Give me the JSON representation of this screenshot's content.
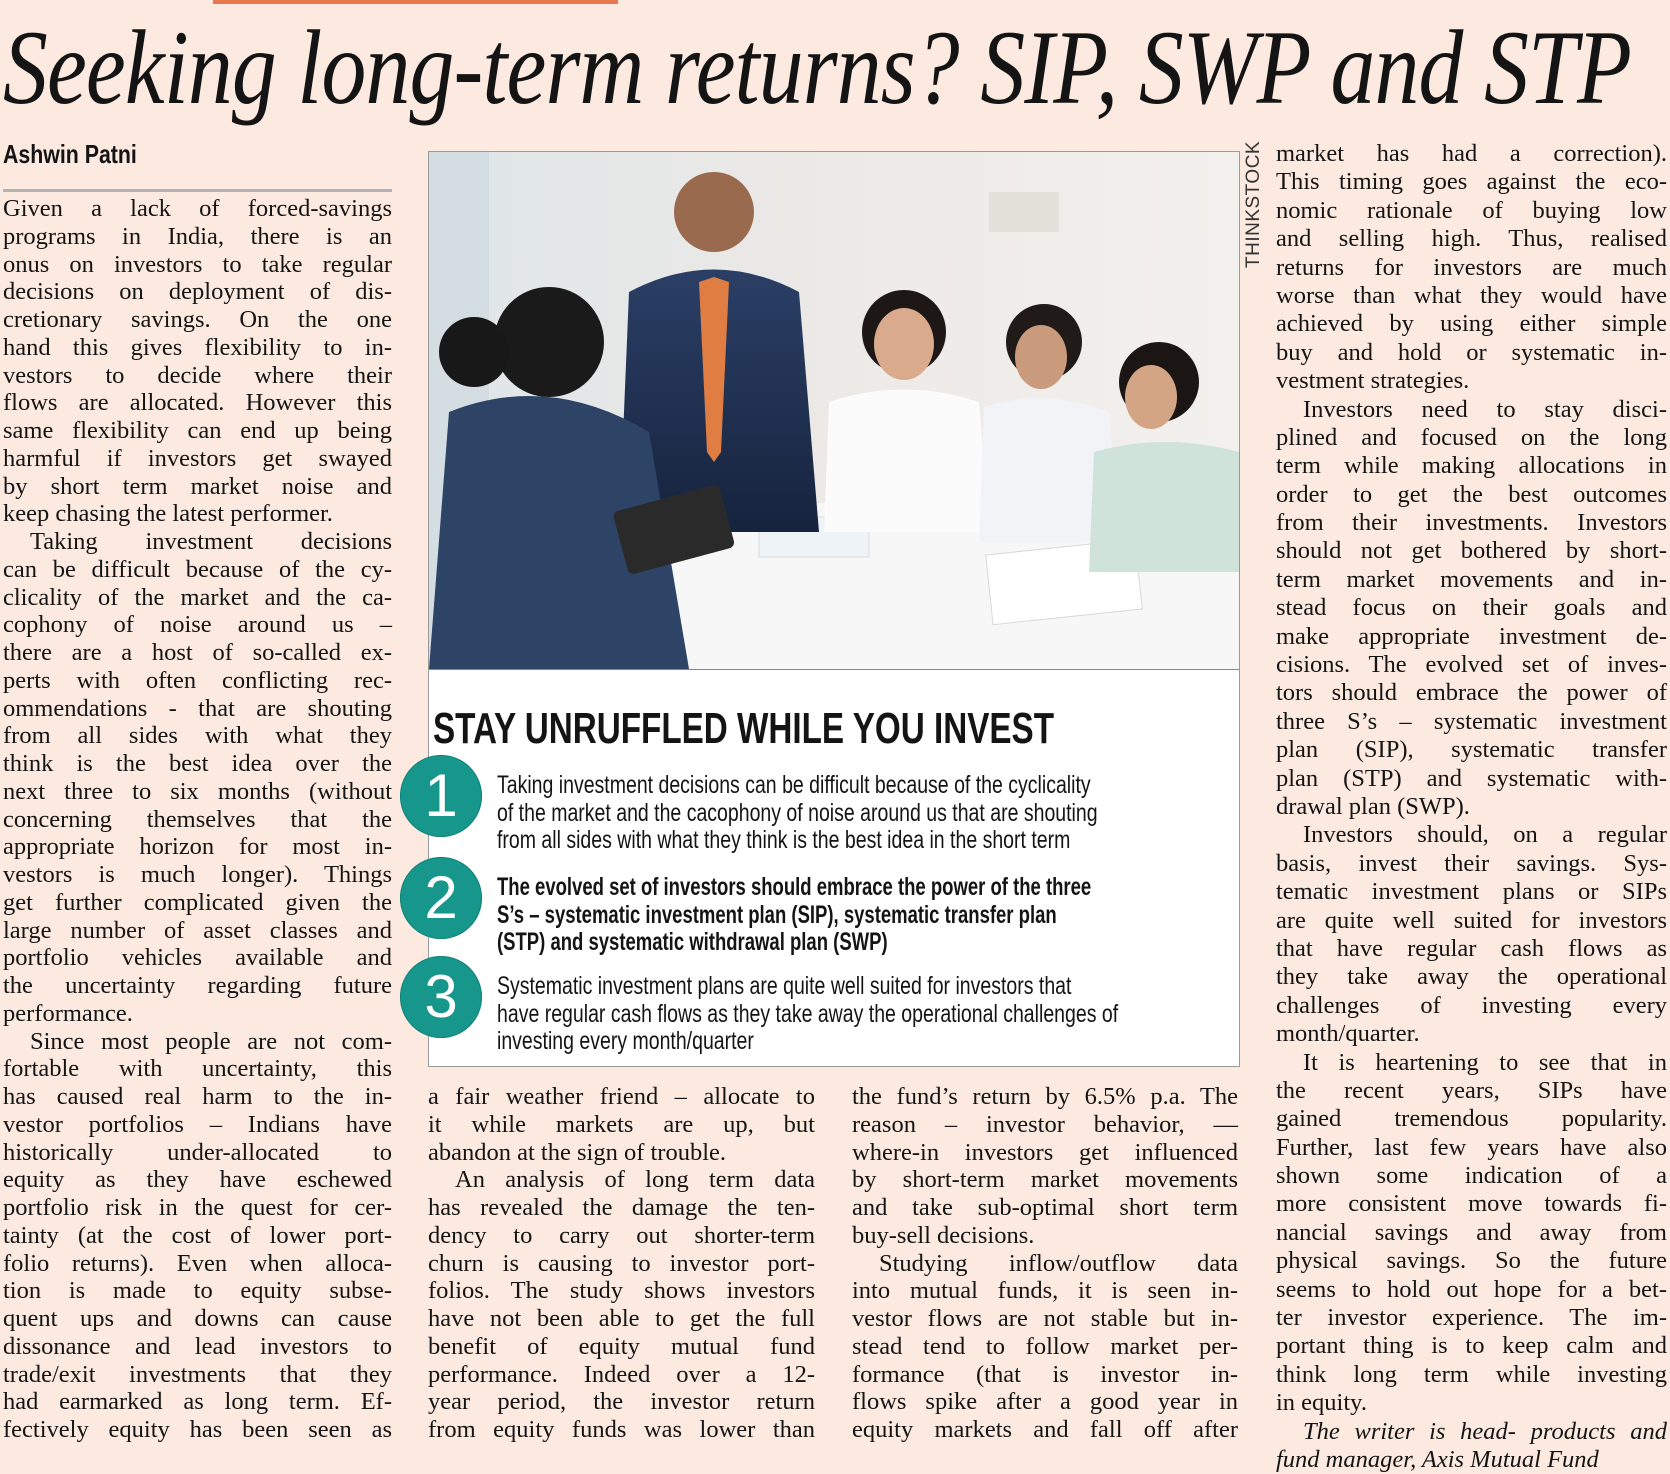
{
  "article": {
    "title": "Seeking long-term returns? SIP, SWP and STP",
    "byline": "Ashwin Patni",
    "photo_credit": "THINKSTOCK",
    "accent_color": "#e8794f",
    "background_color": "#fce9df"
  },
  "sidebar_box": {
    "heading": "STAY UNRUFFLED WHILE YOU INVEST",
    "circle_color": "#17978c",
    "items": [
      {
        "number": "1",
        "lines": [
          "Taking investment decisions can be difficult because of the cyclicality",
          "of the market and the cacophony of noise around us that are shouting",
          "from all sides with what they think is the best idea in the short term"
        ]
      },
      {
        "number": "2",
        "lines": [
          "The evolved set of investors should embrace the power of the three",
          "S’s – systematic investment plan (SIP), systematic transfer plan",
          "(STP) and systematic withdrawal plan (SWP)"
        ]
      },
      {
        "number": "3",
        "lines": [
          "Systematic investment plans are quite well suited for investors that",
          "have regular cash flows as they take away the operational challenges of",
          "investing every month/quarter"
        ]
      }
    ]
  },
  "columns": [
    {
      "paragraphs": [
        [
          "Given a lack of forced-savings",
          "programs in India, there is an",
          "onus on investors to take regular",
          "decisions on deployment of dis-",
          "cretionary savings. On the one",
          "hand this gives flexibility to in-",
          "vestors to decide where their",
          "flows are allocated. However this",
          "same flexibility can end up being",
          "harmful if investors get swayed",
          "by short term market noise and",
          "keep chasing the latest performer."
        ],
        [
          "Taking investment decisions",
          "can be difficult because of the cy-",
          "clicality of the market and the ca-",
          "cophony of noise around us –",
          "there are a host of so-called ex-",
          "perts with often conflicting rec-",
          "ommendations - that are shouting",
          "from all sides with what they",
          "think is the best idea over the",
          "next three to six months (without",
          "concerning themselves that the",
          "appropriate horizon for most in-",
          "vestors is much longer). Things",
          "get further complicated given the",
          "large number of asset classes and",
          "portfolio vehicles available and",
          "the uncertainty regarding future",
          "performance."
        ],
        [
          "Since most people are not com-",
          "fortable with uncertainty, this",
          "has caused real harm to the in-",
          "vestor portfolios – Indians have",
          "historically under-allocated to",
          "equity as they have eschewed",
          "portfolio risk in the quest for cer-",
          "tainty (at the cost of lower port-",
          "folio returns). Even when alloca-",
          "tion is made to equity subse-",
          "quent ups and downs can cause",
          "dissonance and lead investors to",
          "trade/exit investments that they",
          "had earmarked as long term. Ef-",
          "fectively equity has been seen as"
        ]
      ]
    },
    {
      "paragraphs": [
        [
          "a fair weather friend – allocate to",
          "it while markets are up, but",
          "abandon at the sign of trouble."
        ],
        [
          "An analysis of long term data",
          "has revealed the damage the ten-",
          "dency to carry out shorter-term",
          "churn is causing to investor port-",
          "folios. The study shows investors",
          "have not been able to get the full",
          "benefit of equity mutual fund",
          "performance. Indeed over a 12-",
          "year period, the investor return",
          "from equity funds was lower than"
        ]
      ]
    },
    {
      "paragraphs": [
        [
          "the fund’s return by 6.5% p.a. The",
          "reason – investor behavior, —",
          "where-in investors get influenced",
          "by short-term market movements",
          "and take sub-optimal short term",
          "buy-sell decisions."
        ],
        [
          "Studying inflow/outflow data",
          "into mutual funds, it is seen in-",
          "vestor flows are not stable but in-",
          "stead tend to follow market per-",
          "formance (that is investor in-",
          "flows spike after a good year in",
          "equity markets and fall off after"
        ]
      ]
    },
    {
      "paragraphs": [
        [
          "market has had a correction).",
          "This timing goes against the eco-",
          "nomic rationale of buying low",
          "and selling high. Thus, realised",
          "returns for investors are much",
          "worse than what they would have",
          "achieved by using either simple",
          "buy and hold or systematic in-",
          "vestment strategies."
        ],
        [
          "Investors need to stay disci-",
          "plined and focused on the long",
          "term while making allocations in",
          "order to get the best outcomes",
          "from their investments. Investors",
          "should not get bothered by short-",
          "term market movements and in-",
          "stead focus on their goals and",
          "make appropriate investment de-",
          "cisions. The evolved set of inves-",
          "tors should embrace the power of",
          "three S’s – systematic investment",
          "plan (SIP), systematic transfer",
          "plan (STP) and systematic with-",
          "drawal plan (SWP)."
        ],
        [
          "Investors should, on a regular",
          "basis, invest their savings. Sys-",
          "tematic investment plans or SIPs",
          "are quite well suited for investors",
          "that have regular cash flows as",
          "they take away the operational",
          "challenges of investing every",
          "month/quarter."
        ],
        [
          "It is heartening to see that in",
          "the recent years, SIPs have",
          "gained tremendous popularity.",
          "Further, last few years have also",
          "shown some indication of a",
          "more consistent move towards fi-",
          "nancial savings and away from",
          "physical savings. So the future",
          "seems to hold out hope for a bet-",
          "ter investor experience. The im-",
          "portant thing is to keep calm and",
          "think long term while investing",
          "in equity."
        ],
        [
          "The writer is head- products and",
          "fund manager, Axis Mutual Fund"
        ]
      ]
    }
  ]
}
